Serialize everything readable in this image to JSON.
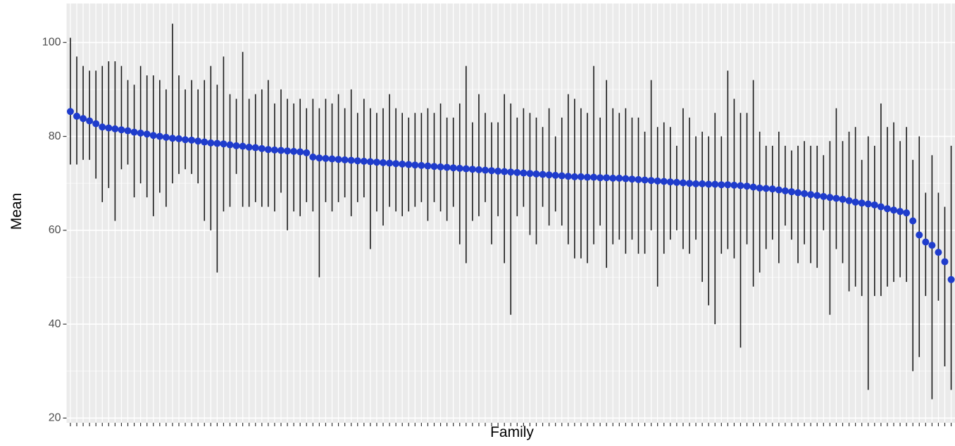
{
  "chart_data": {
    "type": "errorbar",
    "x_label": "Family",
    "y_label": "Mean",
    "point_color": "#1f3ccc",
    "bar_color": "#1a1a1a",
    "ylim": [
      19,
      108.3
    ],
    "yticks": [
      20,
      40,
      60,
      80,
      100
    ],
    "y_minor_ticks": [
      30,
      50,
      70,
      90
    ],
    "grid": true,
    "categories": [
      null,
      null,
      null,
      null,
      null,
      null,
      null,
      null,
      null,
      null,
      null,
      null,
      null,
      null,
      null,
      null,
      null,
      null,
      null,
      null,
      null,
      null,
      null,
      null,
      null,
      null,
      null,
      null,
      null,
      null,
      null,
      null,
      null,
      null,
      null,
      null,
      null,
      null,
      null,
      null,
      null,
      null,
      null,
      null,
      null,
      null,
      null,
      null,
      null,
      null,
      null,
      null,
      null,
      null,
      null,
      null,
      null,
      null,
      null,
      null,
      null,
      null,
      null,
      null,
      null,
      null,
      null,
      null,
      null,
      null,
      null,
      null,
      null,
      null,
      null,
      null,
      null,
      null,
      null,
      null,
      null,
      null,
      null,
      null,
      null,
      null,
      null,
      null,
      null,
      null,
      null,
      null,
      null,
      null,
      null,
      null,
      null,
      null,
      null,
      null,
      null,
      null,
      null,
      null,
      null,
      null,
      null,
      null,
      null,
      null,
      null,
      null,
      null,
      null,
      null,
      null,
      null,
      null,
      null,
      null,
      null,
      null,
      null,
      null,
      null,
      null,
      null,
      null,
      null,
      null,
      null,
      null,
      null,
      null,
      null,
      null,
      null,
      null,
      null
    ],
    "values": [
      85.3,
      84.3,
      83.8,
      83.3,
      82.7,
      82.0,
      81.8,
      81.6,
      81.4,
      81.2,
      80.9,
      80.7,
      80.5,
      80.2,
      80.0,
      79.8,
      79.6,
      79.5,
      79.3,
      79.2,
      79.0,
      78.8,
      78.6,
      78.5,
      78.4,
      78.2,
      78.0,
      77.9,
      77.7,
      77.6,
      77.4,
      77.2,
      77.1,
      77.0,
      76.9,
      76.8,
      76.7,
      76.5,
      75.6,
      75.4,
      75.3,
      75.2,
      75.1,
      75.0,
      74.9,
      74.8,
      74.7,
      74.6,
      74.5,
      74.4,
      74.3,
      74.2,
      74.1,
      74.0,
      73.9,
      73.8,
      73.7,
      73.6,
      73.5,
      73.4,
      73.3,
      73.2,
      73.1,
      73.0,
      72.9,
      72.8,
      72.7,
      72.6,
      72.5,
      72.4,
      72.3,
      72.2,
      72.1,
      72.0,
      71.9,
      71.8,
      71.7,
      71.6,
      71.5,
      71.4,
      71.4,
      71.3,
      71.3,
      71.2,
      71.2,
      71.1,
      71.1,
      71.0,
      70.9,
      70.8,
      70.7,
      70.6,
      70.5,
      70.4,
      70.3,
      70.2,
      70.1,
      70.0,
      69.9,
      69.9,
      69.8,
      69.8,
      69.7,
      69.7,
      69.6,
      69.5,
      69.4,
      69.2,
      69.0,
      68.9,
      68.8,
      68.6,
      68.4,
      68.2,
      68.0,
      67.8,
      67.6,
      67.4,
      67.2,
      67.0,
      66.8,
      66.6,
      66.3,
      66.0,
      65.8,
      65.6,
      65.4,
      65.0,
      64.6,
      64.3,
      64.0,
      63.7,
      62.0,
      59.0,
      57.5,
      56.8,
      55.3,
      53.3,
      49.5
    ],
    "lower": [
      74,
      74,
      75,
      75,
      71,
      66,
      69,
      62,
      73,
      74,
      67,
      70,
      67,
      63,
      68,
      65,
      70,
      72,
      73,
      72,
      70,
      62,
      60,
      51,
      64,
      65,
      72,
      65,
      65,
      66,
      65,
      65,
      64,
      68,
      60,
      64,
      63,
      66,
      64,
      50,
      66,
      64,
      66,
      67,
      63,
      66,
      67,
      56,
      64,
      61,
      65,
      64,
      63,
      64,
      65,
      66,
      62,
      66,
      64,
      62,
      65,
      57,
      53,
      62,
      63,
      66,
      57,
      63,
      53,
      42,
      63,
      65,
      59,
      57,
      65,
      61,
      64,
      61,
      57,
      54,
      54,
      53,
      57,
      61,
      52,
      57,
      58,
      55,
      58,
      55,
      55,
      60,
      48,
      55,
      58,
      60,
      56,
      55,
      58,
      49,
      44,
      40,
      55,
      56,
      54,
      35,
      57,
      48,
      51,
      56,
      58,
      53,
      61,
      58,
      53,
      57,
      53,
      52,
      60,
      42,
      56,
      53,
      47,
      48,
      46,
      26,
      46,
      46,
      48,
      49,
      50,
      49,
      30,
      33,
      46,
      24,
      45,
      31,
      26
    ],
    "upper": [
      101,
      97,
      95,
      94,
      94,
      95,
      96,
      96,
      95,
      92,
      91,
      95,
      93,
      93,
      92,
      90,
      104,
      93,
      90,
      92,
      90,
      92,
      95,
      91,
      97,
      89,
      88,
      98,
      88,
      89,
      90,
      92,
      87,
      90,
      88,
      87,
      88,
      86,
      88,
      86,
      88,
      87,
      89,
      86,
      90,
      85,
      88,
      86,
      85,
      86,
      89,
      86,
      85,
      84,
      85,
      85,
      86,
      85,
      87,
      84,
      84,
      87,
      95,
      83,
      89,
      85,
      83,
      83,
      89,
      87,
      84,
      86,
      85,
      84,
      82,
      86,
      80,
      84,
      89,
      88,
      86,
      85,
      95,
      84,
      92,
      86,
      85,
      86,
      84,
      84,
      81,
      92,
      82,
      83,
      82,
      78,
      86,
      84,
      80,
      81,
      80,
      85,
      80,
      94,
      88,
      85,
      85,
      92,
      81,
      78,
      78,
      81,
      78,
      77,
      78,
      79,
      78,
      78,
      76,
      79,
      86,
      79,
      81,
      82,
      75,
      80,
      78,
      87,
      82,
      83,
      79,
      82,
      75,
      80,
      68,
      76,
      68,
      65,
      78
    ]
  }
}
